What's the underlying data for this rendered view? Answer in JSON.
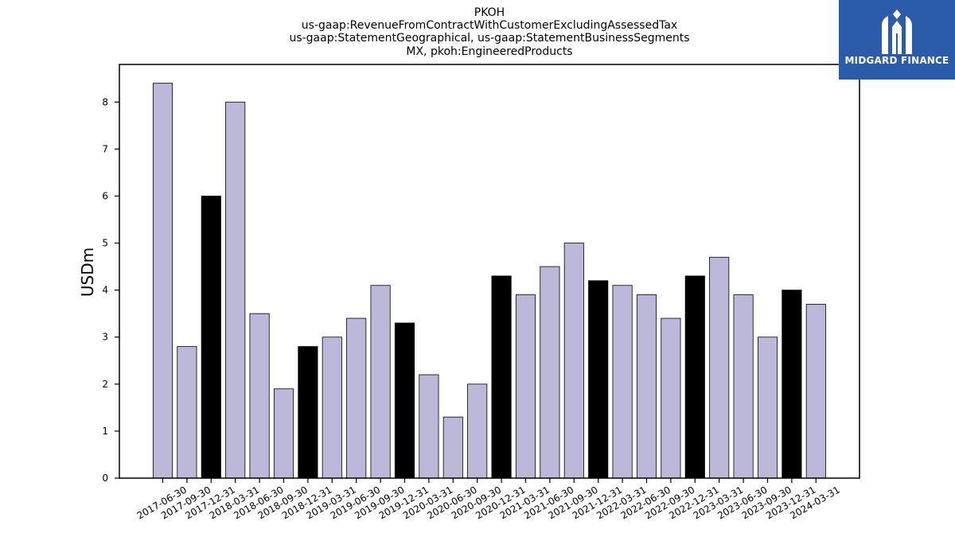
{
  "logo": {
    "text": "MIDGARD FINANCE",
    "icon": "midgard-logo-icon",
    "background": "#2a5caa"
  },
  "chart_data": {
    "type": "bar",
    "title_lines": [
      "PKOH",
      "us-gaap:RevenueFromContractWithCustomerExcludingAssessedTax",
      "us-gaap:StatementGeographical, us-gaap:StatementBusinessSegments",
      "MX, pkoh:EngineeredProducts"
    ],
    "xlabel": "",
    "ylabel": "USDm",
    "ylim": [
      0,
      8.8
    ],
    "yticks": [
      0,
      1,
      2,
      3,
      4,
      5,
      6,
      7,
      8
    ],
    "grid": false,
    "colors": {
      "regular": "#bcb8d9",
      "highlight": "#000000",
      "edge": "#000000"
    },
    "categories": [
      "2017-06-30",
      "2017-09-30",
      "2017-12-31",
      "2018-03-31",
      "2018-06-30",
      "2018-09-30",
      "2018-12-31",
      "2019-03-31",
      "2019-06-30",
      "2019-09-30",
      "2019-12-31",
      "2020-03-31",
      "2020-06-30",
      "2020-09-30",
      "2020-12-31",
      "2021-03-31",
      "2021-06-30",
      "2021-09-30",
      "2021-12-31",
      "2022-03-31",
      "2022-06-30",
      "2022-09-30",
      "2022-12-31",
      "2023-03-31",
      "2023-06-30",
      "2023-09-30",
      "2023-12-31",
      "2024-03-31"
    ],
    "values": [
      8.4,
      2.8,
      6.0,
      8.0,
      3.5,
      1.9,
      2.8,
      3.0,
      3.4,
      4.1,
      3.3,
      2.2,
      1.3,
      2.0,
      4.3,
      3.9,
      4.5,
      5.0,
      4.2,
      4.1,
      3.9,
      3.4,
      4.3,
      4.7,
      3.9,
      3.0,
      4.0,
      3.7
    ],
    "highlighted": [
      false,
      false,
      true,
      false,
      false,
      false,
      true,
      false,
      false,
      false,
      true,
      false,
      false,
      false,
      true,
      false,
      false,
      false,
      true,
      false,
      false,
      false,
      true,
      false,
      false,
      false,
      true,
      false
    ]
  }
}
